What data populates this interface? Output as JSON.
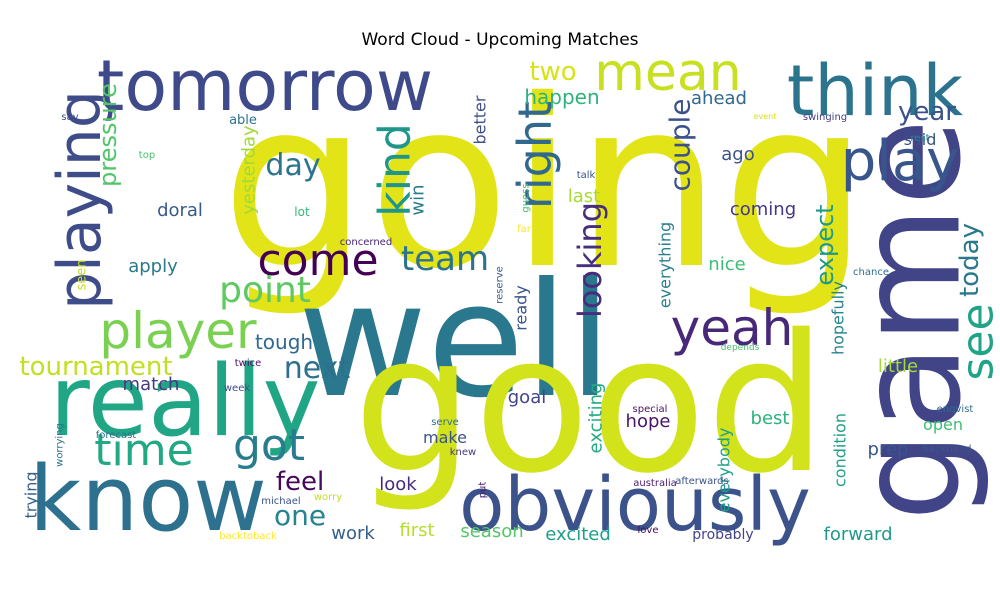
{
  "title": "Word Cloud - Upcoming Matches",
  "words": [
    {
      "text": "going",
      "color": "#e2e418"
    },
    {
      "text": "well",
      "color": "#2a788e"
    },
    {
      "text": "good",
      "color": "#d2e21b"
    },
    {
      "text": "game",
      "color": "#414487"
    },
    {
      "text": "know",
      "color": "#2d718e"
    },
    {
      "text": "really",
      "color": "#21a685"
    },
    {
      "text": "obviously",
      "color": "#3b528b"
    },
    {
      "text": "tomorrow",
      "color": "#3e4a89"
    },
    {
      "text": "think",
      "color": "#2c738e"
    },
    {
      "text": "mean",
      "color": "#c8e020"
    },
    {
      "text": "play",
      "color": "#39568c"
    },
    {
      "text": "playing",
      "color": "#3e4c8a"
    },
    {
      "text": "player",
      "color": "#7ad151"
    },
    {
      "text": "yeah",
      "color": "#482878"
    },
    {
      "text": "time",
      "color": "#22a884"
    },
    {
      "text": "got",
      "color": "#287c8e"
    },
    {
      "text": "come",
      "color": "#440154"
    },
    {
      "text": "right",
      "color": "#31688e"
    },
    {
      "text": "kind",
      "color": "#1f968b"
    },
    {
      "text": "see",
      "color": "#20a386"
    },
    {
      "text": "point",
      "color": "#5ec962"
    },
    {
      "text": "team",
      "color": "#2c728e"
    },
    {
      "text": "looking",
      "color": "#472d7b"
    },
    {
      "text": "tournament",
      "color": "#c2df23"
    },
    {
      "text": "feel",
      "color": "#46085c"
    },
    {
      "text": "one",
      "color": "#25848e"
    },
    {
      "text": "next",
      "color": "#2d708e"
    },
    {
      "text": "couple",
      "color": "#3c508b"
    },
    {
      "text": "day",
      "color": "#2b748e"
    },
    {
      "text": "two",
      "color": "#d8e219"
    },
    {
      "text": "year",
      "color": "#3b528b"
    },
    {
      "text": "today",
      "color": "#2a788e"
    },
    {
      "text": "pressure",
      "color": "#52c569"
    },
    {
      "text": "expect",
      "color": "#1f9a8a"
    },
    {
      "text": "happen",
      "color": "#2db27d"
    },
    {
      "text": "ahead",
      "color": "#30698e"
    },
    {
      "text": "tough",
      "color": "#30698e"
    },
    {
      "text": "match",
      "color": "#443983"
    },
    {
      "text": "ago",
      "color": "#3b528b"
    },
    {
      "text": "coming",
      "color": "#453882"
    },
    {
      "text": "doral",
      "color": "#38598c"
    },
    {
      "text": "yesterday",
      "color": "#a0da39"
    },
    {
      "text": "apply",
      "color": "#2a788e"
    },
    {
      "text": "last",
      "color": "#a8db34"
    },
    {
      "text": "win",
      "color": "#297b8e"
    },
    {
      "text": "better",
      "color": "#3c4f8a"
    },
    {
      "text": "nice",
      "color": "#3dbc74"
    },
    {
      "text": "everything",
      "color": "#277f8e"
    },
    {
      "text": "hopefully",
      "color": "#25838e"
    },
    {
      "text": "little",
      "color": "#a2da37"
    },
    {
      "text": "ready",
      "color": "#3a548c"
    },
    {
      "text": "goal",
      "color": "#414487"
    },
    {
      "text": "exciting",
      "color": "#24aa83"
    },
    {
      "text": "hope",
      "color": "#481467"
    },
    {
      "text": "best",
      "color": "#2db27d"
    },
    {
      "text": "open",
      "color": "#3dbc74"
    },
    {
      "text": "condition",
      "color": "#1fa088"
    },
    {
      "text": "everybody",
      "color": "#1f9e89"
    },
    {
      "text": "prep",
      "color": "#39568c"
    },
    {
      "text": "make",
      "color": "#3a538b"
    },
    {
      "text": "look",
      "color": "#472a7a"
    },
    {
      "text": "trying",
      "color": "#33628d"
    },
    {
      "text": "work",
      "color": "#34608d"
    },
    {
      "text": "first",
      "color": "#b5de2b"
    },
    {
      "text": "season",
      "color": "#54c568"
    },
    {
      "text": "excited",
      "color": "#1f9e89"
    },
    {
      "text": "forward",
      "color": "#1f9a8a"
    },
    {
      "text": "probably",
      "color": "#414487"
    },
    {
      "text": "seen",
      "color": "#c5e021"
    },
    {
      "text": "said",
      "color": "#3b528b"
    },
    {
      "text": "lot",
      "color": "#35b779"
    },
    {
      "text": "top",
      "color": "#4ac16d"
    },
    {
      "text": "able",
      "color": "#2c728e"
    },
    {
      "text": "say",
      "color": "#3e4a89"
    },
    {
      "text": "talk",
      "color": "#3b528b"
    },
    {
      "text": "guess",
      "color": "#4ac16d"
    },
    {
      "text": "far",
      "color": "#fde725"
    },
    {
      "text": "event",
      "color": "#d8e219"
    },
    {
      "text": "swinging",
      "color": "#433e85"
    },
    {
      "text": "rest",
      "color": "#25848e"
    },
    {
      "text": "concerned",
      "color": "#482576"
    },
    {
      "text": "reserve",
      "color": "#365c8d"
    },
    {
      "text": "chance",
      "color": "#2e6e8e"
    },
    {
      "text": "depends",
      "color": "#4ac16d"
    },
    {
      "text": "twice",
      "color": "#471063"
    },
    {
      "text": "week",
      "color": "#3f4889"
    },
    {
      "text": "serve",
      "color": "#2e6e8e"
    },
    {
      "text": "knew",
      "color": "#453781"
    },
    {
      "text": "special",
      "color": "#471063"
    },
    {
      "text": "enqvist",
      "color": "#2e6e8e"
    },
    {
      "text": "backhand",
      "color": "#39568c"
    },
    {
      "text": "forecast",
      "color": "#2d708e"
    },
    {
      "text": "worrying",
      "color": "#2c728e"
    },
    {
      "text": "australia",
      "color": "#481b6d"
    },
    {
      "text": "afterwards",
      "color": "#3b528b"
    },
    {
      "text": "put",
      "color": "#481b6d"
    },
    {
      "text": "michael",
      "color": "#3b528b"
    },
    {
      "text": "worry",
      "color": "#c2df23"
    },
    {
      "text": "love",
      "color": "#46085c"
    },
    {
      "text": "backtoback",
      "color": "#fde725"
    }
  ]
}
